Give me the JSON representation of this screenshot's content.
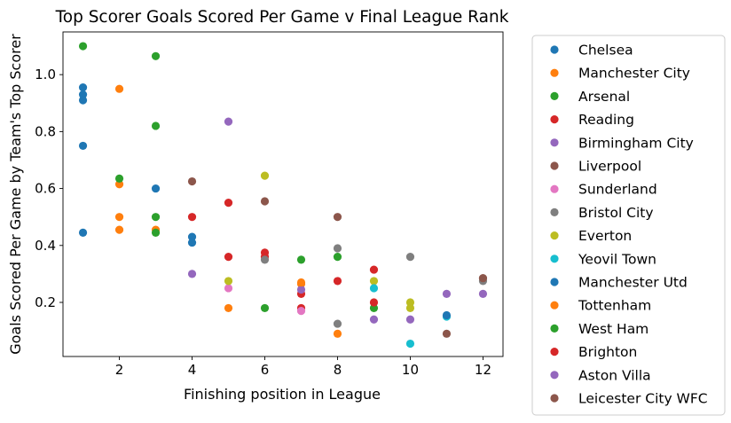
{
  "chart_data": {
    "type": "scatter",
    "title": "Top Scorer Goals Scored Per Game v Final League Rank",
    "xlabel": "Finishing position in League",
    "ylabel": "Goals Scored Per Game by Team's Top Scorer",
    "xlim": [
      0.45,
      12.55
    ],
    "ylim": [
      0.01,
      1.15
    ],
    "xticks": [
      2,
      4,
      6,
      8,
      10,
      12
    ],
    "yticks": [
      0.2,
      0.4,
      0.6,
      0.8,
      1.0
    ],
    "ytick_labels": [
      "0.2",
      "0.4",
      "0.6",
      "0.8",
      "1.0"
    ],
    "grid": false,
    "legend_position": "outside-right",
    "series": [
      {
        "name": "Chelsea",
        "color": "#1f77b4",
        "points": [
          [
            1,
            0.955
          ],
          [
            1,
            0.93
          ],
          [
            1,
            0.91
          ],
          [
            1,
            0.75
          ],
          [
            1,
            0.445
          ],
          [
            3,
            0.6
          ],
          [
            4,
            0.43
          ],
          [
            4,
            0.41
          ]
        ]
      },
      {
        "name": "Manchester City",
        "color": "#ff7f0e",
        "points": [
          [
            2,
            0.95
          ],
          [
            2,
            0.615
          ],
          [
            2,
            0.5
          ],
          [
            2,
            0.455
          ],
          [
            3,
            0.455
          ],
          [
            5,
            0.18
          ],
          [
            7,
            0.265
          ],
          [
            8,
            0.09
          ]
        ]
      },
      {
        "name": "Arsenal",
        "color": "#2ca02c",
        "points": [
          [
            1,
            1.1
          ],
          [
            2,
            0.635
          ],
          [
            3,
            1.065
          ],
          [
            3,
            0.82
          ],
          [
            3,
            0.5
          ],
          [
            3,
            0.445
          ],
          [
            6,
            0.18
          ],
          [
            7,
            0.35
          ],
          [
            8,
            0.36
          ],
          [
            9,
            0.18
          ]
        ]
      },
      {
        "name": "Reading",
        "color": "#d62728",
        "points": [
          [
            4,
            0.5
          ],
          [
            5,
            0.55
          ],
          [
            5,
            0.36
          ],
          [
            6,
            0.375
          ],
          [
            6,
            0.36
          ],
          [
            7,
            0.23
          ],
          [
            7,
            0.18
          ],
          [
            8,
            0.275
          ],
          [
            9,
            0.315
          ],
          [
            9,
            0.2
          ]
        ]
      },
      {
        "name": "Birmingham City",
        "color": "#9467bd",
        "points": [
          [
            4,
            0.3
          ],
          [
            5,
            0.835
          ],
          [
            7,
            0.245
          ],
          [
            9,
            0.14
          ],
          [
            10,
            0.14
          ],
          [
            11,
            0.23
          ],
          [
            12,
            0.23
          ]
        ]
      },
      {
        "name": "Liverpool",
        "color": "#8c564b",
        "points": [
          [
            4,
            0.625
          ],
          [
            6,
            0.555
          ],
          [
            8,
            0.5
          ],
          [
            11,
            0.09
          ],
          [
            12,
            0.285
          ]
        ]
      },
      {
        "name": "Sunderland",
        "color": "#e377c2",
        "points": [
          [
            5,
            0.25
          ],
          [
            7,
            0.17
          ]
        ]
      },
      {
        "name": "Bristol City",
        "color": "#7f7f7f",
        "points": [
          [
            6,
            0.35
          ],
          [
            8,
            0.39
          ],
          [
            8,
            0.125
          ],
          [
            10,
            0.36
          ],
          [
            12,
            0.275
          ]
        ]
      },
      {
        "name": "Everton",
        "color": "#bcbd22",
        "points": [
          [
            5,
            0.275
          ],
          [
            6,
            0.645
          ],
          [
            9,
            0.275
          ],
          [
            10,
            0.2
          ],
          [
            10,
            0.18
          ]
        ]
      },
      {
        "name": "Yeovil Town",
        "color": "#17becf",
        "points": [
          [
            9,
            0.25
          ],
          [
            10,
            0.055
          ],
          [
            11,
            0.15
          ]
        ]
      },
      {
        "name": "Manchester Utd",
        "color": "#1f77b4",
        "points": [
          [
            11,
            0.155
          ]
        ]
      },
      {
        "name": "Tottenham",
        "color": "#ff7f0e",
        "points": [
          [
            7,
            0.27
          ]
        ]
      },
      {
        "name": "West Ham",
        "color": "#2ca02c",
        "points": []
      },
      {
        "name": "Brighton",
        "color": "#d62728",
        "points": []
      },
      {
        "name": "Aston Villa",
        "color": "#9467bd",
        "points": []
      },
      {
        "name": "Leicester City WFC",
        "color": "#8c564b",
        "points": [
          [
            12,
            0.285
          ]
        ]
      }
    ]
  }
}
